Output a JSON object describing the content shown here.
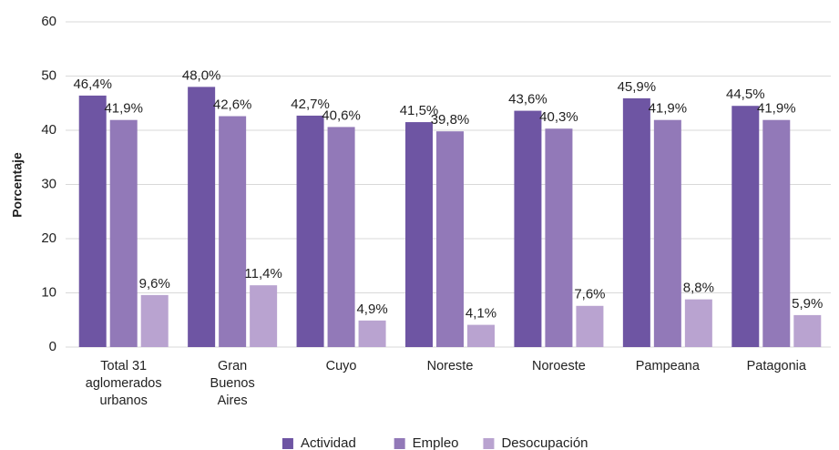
{
  "chart_data": {
    "type": "bar",
    "y_label": "Porcentaje",
    "categories": [
      "Total 31 aglomerados urbanos",
      "Gran Buenos Aires",
      "Cuyo",
      "Noreste",
      "Noroeste",
      "Pampeana",
      "Patagonia"
    ],
    "series": [
      {
        "name": "Actividad",
        "color": "#6e55a3",
        "values": [
          46.4,
          48.0,
          42.7,
          41.5,
          43.6,
          45.9,
          44.5
        ],
        "value_labels": [
          "46,4%",
          "48,0%",
          "42,7%",
          "41,5%",
          "43,6%",
          "45,9%",
          "44,5%"
        ]
      },
      {
        "name": "Empleo",
        "color": "#9279b8",
        "values": [
          41.9,
          42.6,
          40.6,
          39.8,
          40.3,
          41.9,
          41.9
        ],
        "value_labels": [
          "41,9%",
          "42,6%",
          "40,6%",
          "39,8%",
          "40,3%",
          "41,9%",
          "41,9%"
        ]
      },
      {
        "name": "Desocupación",
        "color": "#b9a3d0",
        "values": [
          9.6,
          11.4,
          4.9,
          4.1,
          7.6,
          8.8,
          5.9
        ],
        "value_labels": [
          "9,6%",
          "11,4%",
          "4,9%",
          "4,1%",
          "7,6%",
          "8,8%",
          "5,9%"
        ]
      }
    ],
    "ylim": [
      0,
      60
    ],
    "yticks": [
      0,
      10,
      20,
      30,
      40,
      50,
      60
    ],
    "grid": true,
    "legend": "bottom"
  }
}
